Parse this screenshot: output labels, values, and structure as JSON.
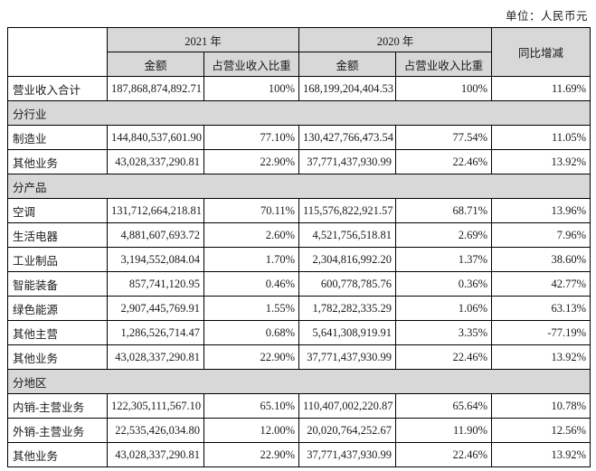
{
  "unit_label": "单位：人民币元",
  "colors": {
    "header_bg": "#d8d8d8",
    "section_bg": "#d8d8d8",
    "border": "#000000",
    "text": "#1a1a1a"
  },
  "table": {
    "header": {
      "year_2021": "2021 年",
      "year_2020": "2020 年",
      "yoy": "同比增减",
      "amount": "金额",
      "ratio": "占营业收入比重"
    },
    "rows": [
      {
        "type": "data",
        "label": "营业收入合计",
        "amount_2021": "187,868,874,892.71",
        "ratio_2021": "100%",
        "amount_2020": "168,199,204,404.53",
        "ratio_2020": "100%",
        "yoy": "11.69%"
      },
      {
        "type": "section",
        "label": "分行业"
      },
      {
        "type": "data",
        "label": "制造业",
        "amount_2021": "144,840,537,601.90",
        "ratio_2021": "77.10%",
        "amount_2020": "130,427,766,473.54",
        "ratio_2020": "77.54%",
        "yoy": "11.05%"
      },
      {
        "type": "data",
        "label": "其他业务",
        "amount_2021": "43,028,337,290.81",
        "ratio_2021": "22.90%",
        "amount_2020": "37,771,437,930.99",
        "ratio_2020": "22.46%",
        "yoy": "13.92%"
      },
      {
        "type": "section",
        "label": "分产品"
      },
      {
        "type": "data",
        "label": "空调",
        "amount_2021": "131,712,664,218.81",
        "ratio_2021": "70.11%",
        "amount_2020": "115,576,822,921.57",
        "ratio_2020": "68.71%",
        "yoy": "13.96%"
      },
      {
        "type": "data",
        "label": "生活电器",
        "amount_2021": "4,881,607,693.72",
        "ratio_2021": "2.60%",
        "amount_2020": "4,521,756,518.81",
        "ratio_2020": "2.69%",
        "yoy": "7.96%"
      },
      {
        "type": "data",
        "label": "工业制品",
        "amount_2021": "3,194,552,084.04",
        "ratio_2021": "1.70%",
        "amount_2020": "2,304,816,992.20",
        "ratio_2020": "1.37%",
        "yoy": "38.60%"
      },
      {
        "type": "data",
        "label": "智能装备",
        "amount_2021": "857,741,120.95",
        "ratio_2021": "0.46%",
        "amount_2020": "600,778,785.76",
        "ratio_2020": "0.36%",
        "yoy": "42.77%"
      },
      {
        "type": "data",
        "label": "绿色能源",
        "amount_2021": "2,907,445,769.91",
        "ratio_2021": "1.55%",
        "amount_2020": "1,782,282,335.29",
        "ratio_2020": "1.06%",
        "yoy": "63.13%"
      },
      {
        "type": "data",
        "label": "其他主营",
        "amount_2021": "1,286,526,714.47",
        "ratio_2021": "0.68%",
        "amount_2020": "5,641,308,919.91",
        "ratio_2020": "3.35%",
        "yoy": "-77.19%"
      },
      {
        "type": "data",
        "label": "其他业务",
        "amount_2021": "43,028,337,290.81",
        "ratio_2021": "22.90%",
        "amount_2020": "37,771,437,930.99",
        "ratio_2020": "22.46%",
        "yoy": "13.92%"
      },
      {
        "type": "section",
        "label": "分地区"
      },
      {
        "type": "data",
        "label": "内销-主营业务",
        "amount_2021": "122,305,111,567.10",
        "ratio_2021": "65.10%",
        "amount_2020": "110,407,002,220.87",
        "ratio_2020": "65.64%",
        "yoy": "10.78%"
      },
      {
        "type": "data",
        "label": "外销-主营业务",
        "amount_2021": "22,535,426,034.80",
        "ratio_2021": "12.00%",
        "amount_2020": "20,020,764,252.67",
        "ratio_2020": "11.90%",
        "yoy": "12.56%"
      },
      {
        "type": "data",
        "label": "其他业务",
        "amount_2021": "43,028,337,290.81",
        "ratio_2021": "22.90%",
        "amount_2020": "37,771,437,930.99",
        "ratio_2020": "22.46%",
        "yoy": "13.92%"
      }
    ]
  }
}
